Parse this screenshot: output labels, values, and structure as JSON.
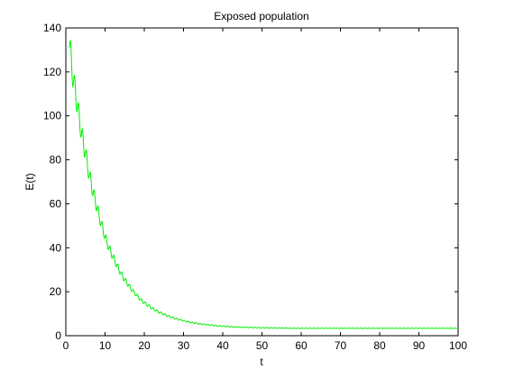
{
  "chart_data": {
    "type": "line",
    "title": "Exposed population",
    "xlabel": "t",
    "ylabel": "E(t)",
    "xlim": [
      0,
      100
    ],
    "ylim": [
      0,
      140
    ],
    "xticks": [
      0,
      10,
      20,
      30,
      40,
      50,
      60,
      70,
      80,
      90,
      100
    ],
    "yticks": [
      0,
      20,
      40,
      60,
      80,
      100,
      120,
      140
    ],
    "grid": false,
    "legend": "none",
    "series": [
      {
        "color": "#00ee00",
        "x": [
          0.8,
          1.5,
          2,
          3,
          4,
          5,
          6,
          7,
          8,
          9,
          10,
          11,
          12,
          13,
          14,
          15,
          16,
          17,
          18,
          19,
          20,
          22,
          24,
          26,
          28,
          30,
          32,
          34,
          36,
          38,
          40,
          42,
          44,
          46,
          48,
          50,
          55,
          60,
          65,
          70,
          75,
          80,
          85,
          90,
          95,
          100
        ],
        "y": [
          137,
          122,
          116,
          104,
          92,
          83,
          73,
          65,
          58,
          51,
          45,
          40,
          36,
          32,
          28.5,
          25.5,
          23,
          20.5,
          18.5,
          16.5,
          15,
          12.5,
          10.5,
          9.0,
          7.8,
          6.8,
          6.0,
          5.4,
          5.0,
          4.6,
          4.3,
          4.1,
          3.9,
          3.8,
          3.7,
          3.6,
          3.5,
          3.4,
          3.4,
          3.4,
          3.4,
          3.4,
          3.4,
          3.4,
          3.4,
          3.4
        ]
      }
    ]
  },
  "colors": {
    "line": "#00ee00",
    "axes": "#000000",
    "background": "#ffffff"
  }
}
